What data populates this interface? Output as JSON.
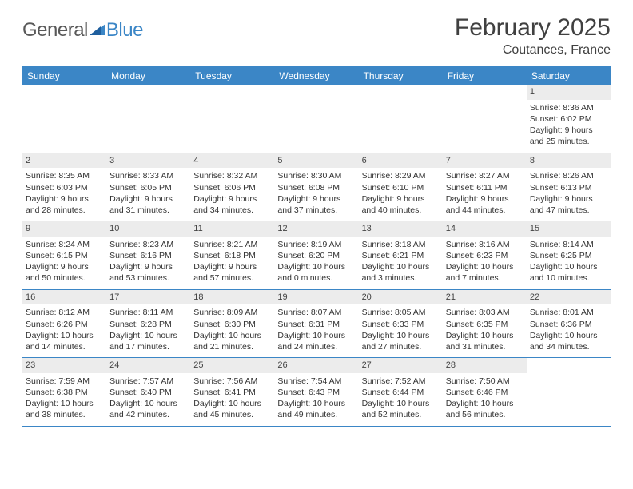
{
  "brand": {
    "part1": "General",
    "part2": "Blue"
  },
  "title": "February 2025",
  "location": "Coutances, France",
  "colors": {
    "accent": "#3b86c6",
    "text": "#404040",
    "daynum_bg": "#ececec",
    "body_text": "#333333",
    "background": "#ffffff"
  },
  "days_of_week": [
    "Sunday",
    "Monday",
    "Tuesday",
    "Wednesday",
    "Thursday",
    "Friday",
    "Saturday"
  ],
  "weeks": [
    [
      {
        "n": "",
        "empty": true
      },
      {
        "n": "",
        "empty": true
      },
      {
        "n": "",
        "empty": true
      },
      {
        "n": "",
        "empty": true
      },
      {
        "n": "",
        "empty": true
      },
      {
        "n": "",
        "empty": true
      },
      {
        "n": "1",
        "sunrise": "Sunrise: 8:36 AM",
        "sunset": "Sunset: 6:02 PM",
        "daylight1": "Daylight: 9 hours",
        "daylight2": "and 25 minutes."
      }
    ],
    [
      {
        "n": "2",
        "sunrise": "Sunrise: 8:35 AM",
        "sunset": "Sunset: 6:03 PM",
        "daylight1": "Daylight: 9 hours",
        "daylight2": "and 28 minutes."
      },
      {
        "n": "3",
        "sunrise": "Sunrise: 8:33 AM",
        "sunset": "Sunset: 6:05 PM",
        "daylight1": "Daylight: 9 hours",
        "daylight2": "and 31 minutes."
      },
      {
        "n": "4",
        "sunrise": "Sunrise: 8:32 AM",
        "sunset": "Sunset: 6:06 PM",
        "daylight1": "Daylight: 9 hours",
        "daylight2": "and 34 minutes."
      },
      {
        "n": "5",
        "sunrise": "Sunrise: 8:30 AM",
        "sunset": "Sunset: 6:08 PM",
        "daylight1": "Daylight: 9 hours",
        "daylight2": "and 37 minutes."
      },
      {
        "n": "6",
        "sunrise": "Sunrise: 8:29 AM",
        "sunset": "Sunset: 6:10 PM",
        "daylight1": "Daylight: 9 hours",
        "daylight2": "and 40 minutes."
      },
      {
        "n": "7",
        "sunrise": "Sunrise: 8:27 AM",
        "sunset": "Sunset: 6:11 PM",
        "daylight1": "Daylight: 9 hours",
        "daylight2": "and 44 minutes."
      },
      {
        "n": "8",
        "sunrise": "Sunrise: 8:26 AM",
        "sunset": "Sunset: 6:13 PM",
        "daylight1": "Daylight: 9 hours",
        "daylight2": "and 47 minutes."
      }
    ],
    [
      {
        "n": "9",
        "sunrise": "Sunrise: 8:24 AM",
        "sunset": "Sunset: 6:15 PM",
        "daylight1": "Daylight: 9 hours",
        "daylight2": "and 50 minutes."
      },
      {
        "n": "10",
        "sunrise": "Sunrise: 8:23 AM",
        "sunset": "Sunset: 6:16 PM",
        "daylight1": "Daylight: 9 hours",
        "daylight2": "and 53 minutes."
      },
      {
        "n": "11",
        "sunrise": "Sunrise: 8:21 AM",
        "sunset": "Sunset: 6:18 PM",
        "daylight1": "Daylight: 9 hours",
        "daylight2": "and 57 minutes."
      },
      {
        "n": "12",
        "sunrise": "Sunrise: 8:19 AM",
        "sunset": "Sunset: 6:20 PM",
        "daylight1": "Daylight: 10 hours",
        "daylight2": "and 0 minutes."
      },
      {
        "n": "13",
        "sunrise": "Sunrise: 8:18 AM",
        "sunset": "Sunset: 6:21 PM",
        "daylight1": "Daylight: 10 hours",
        "daylight2": "and 3 minutes."
      },
      {
        "n": "14",
        "sunrise": "Sunrise: 8:16 AM",
        "sunset": "Sunset: 6:23 PM",
        "daylight1": "Daylight: 10 hours",
        "daylight2": "and 7 minutes."
      },
      {
        "n": "15",
        "sunrise": "Sunrise: 8:14 AM",
        "sunset": "Sunset: 6:25 PM",
        "daylight1": "Daylight: 10 hours",
        "daylight2": "and 10 minutes."
      }
    ],
    [
      {
        "n": "16",
        "sunrise": "Sunrise: 8:12 AM",
        "sunset": "Sunset: 6:26 PM",
        "daylight1": "Daylight: 10 hours",
        "daylight2": "and 14 minutes."
      },
      {
        "n": "17",
        "sunrise": "Sunrise: 8:11 AM",
        "sunset": "Sunset: 6:28 PM",
        "daylight1": "Daylight: 10 hours",
        "daylight2": "and 17 minutes."
      },
      {
        "n": "18",
        "sunrise": "Sunrise: 8:09 AM",
        "sunset": "Sunset: 6:30 PM",
        "daylight1": "Daylight: 10 hours",
        "daylight2": "and 21 minutes."
      },
      {
        "n": "19",
        "sunrise": "Sunrise: 8:07 AM",
        "sunset": "Sunset: 6:31 PM",
        "daylight1": "Daylight: 10 hours",
        "daylight2": "and 24 minutes."
      },
      {
        "n": "20",
        "sunrise": "Sunrise: 8:05 AM",
        "sunset": "Sunset: 6:33 PM",
        "daylight1": "Daylight: 10 hours",
        "daylight2": "and 27 minutes."
      },
      {
        "n": "21",
        "sunrise": "Sunrise: 8:03 AM",
        "sunset": "Sunset: 6:35 PM",
        "daylight1": "Daylight: 10 hours",
        "daylight2": "and 31 minutes."
      },
      {
        "n": "22",
        "sunrise": "Sunrise: 8:01 AM",
        "sunset": "Sunset: 6:36 PM",
        "daylight1": "Daylight: 10 hours",
        "daylight2": "and 34 minutes."
      }
    ],
    [
      {
        "n": "23",
        "sunrise": "Sunrise: 7:59 AM",
        "sunset": "Sunset: 6:38 PM",
        "daylight1": "Daylight: 10 hours",
        "daylight2": "and 38 minutes."
      },
      {
        "n": "24",
        "sunrise": "Sunrise: 7:57 AM",
        "sunset": "Sunset: 6:40 PM",
        "daylight1": "Daylight: 10 hours",
        "daylight2": "and 42 minutes."
      },
      {
        "n": "25",
        "sunrise": "Sunrise: 7:56 AM",
        "sunset": "Sunset: 6:41 PM",
        "daylight1": "Daylight: 10 hours",
        "daylight2": "and 45 minutes."
      },
      {
        "n": "26",
        "sunrise": "Sunrise: 7:54 AM",
        "sunset": "Sunset: 6:43 PM",
        "daylight1": "Daylight: 10 hours",
        "daylight2": "and 49 minutes."
      },
      {
        "n": "27",
        "sunrise": "Sunrise: 7:52 AM",
        "sunset": "Sunset: 6:44 PM",
        "daylight1": "Daylight: 10 hours",
        "daylight2": "and 52 minutes."
      },
      {
        "n": "28",
        "sunrise": "Sunrise: 7:50 AM",
        "sunset": "Sunset: 6:46 PM",
        "daylight1": "Daylight: 10 hours",
        "daylight2": "and 56 minutes."
      },
      {
        "n": "",
        "empty": true
      }
    ]
  ]
}
